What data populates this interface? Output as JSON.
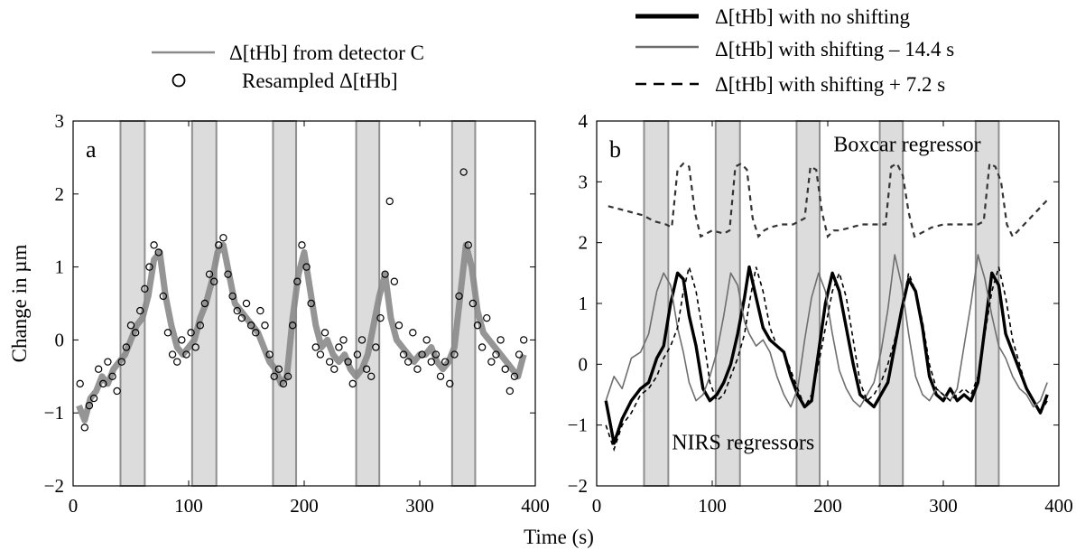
{
  "figure": {
    "xlabel": "Time (s)",
    "shared_ylabel": "Change in µm"
  },
  "legend_a": [
    {
      "label": "Δ[tHb] from detector C",
      "style": "line",
      "color": "#8a8a8a"
    },
    {
      "label": "Resampled Δ[tHb]",
      "style": "circle",
      "color": "#000000"
    }
  ],
  "legend_b": [
    {
      "label": "Δ[tHb] with no shifting",
      "style": "thick",
      "color": "#000000"
    },
    {
      "label": "Δ[tHb] with shifting – 14.4 s",
      "style": "thin",
      "color": "#6e6e6e"
    },
    {
      "label": "Δ[tHb] with shifting + 7.2 s",
      "style": "dashed",
      "color": "#000000"
    }
  ],
  "chart_data": [
    {
      "type": "line",
      "panel_label": "a",
      "ylabel": "Change in µm",
      "xlabel": "",
      "xlim": [
        0,
        400
      ],
      "ylim": [
        -2,
        3
      ],
      "xticks": [
        0,
        100,
        200,
        300,
        400
      ],
      "yticks": [
        -2,
        -1,
        0,
        1,
        2,
        3
      ],
      "shaded_intervals": [
        [
          41,
          62
        ],
        [
          103,
          124
        ],
        [
          173,
          193
        ],
        [
          245,
          265
        ],
        [
          328,
          348
        ]
      ],
      "series": [
        {
          "name": "Δ[tHb] from detector C",
          "x": [
            5,
            10,
            15,
            20,
            25,
            30,
            35,
            40,
            45,
            50,
            55,
            60,
            65,
            70,
            75,
            80,
            85,
            90,
            95,
            100,
            105,
            110,
            115,
            120,
            125,
            130,
            135,
            140,
            145,
            150,
            155,
            160,
            165,
            170,
            175,
            180,
            185,
            190,
            195,
            200,
            205,
            210,
            215,
            220,
            225,
            230,
            235,
            240,
            245,
            250,
            255,
            260,
            265,
            270,
            275,
            280,
            285,
            290,
            295,
            300,
            305,
            310,
            315,
            320,
            325,
            330,
            335,
            340,
            345,
            350,
            355,
            360,
            365,
            370,
            375,
            380,
            385,
            390
          ],
          "y": [
            -0.9,
            -1.1,
            -0.8,
            -0.7,
            -0.5,
            -0.6,
            -0.4,
            -0.3,
            -0.2,
            0.0,
            0.2,
            0.3,
            0.6,
            1.1,
            1.2,
            0.6,
            0.2,
            -0.1,
            -0.2,
            -0.1,
            0.0,
            0.3,
            0.5,
            0.8,
            1.2,
            1.3,
            0.9,
            0.5,
            0.4,
            0.3,
            0.2,
            0.1,
            -0.1,
            -0.3,
            -0.4,
            -0.6,
            -0.5,
            0.3,
            0.9,
            1.2,
            0.7,
            0.2,
            -0.1,
            0.0,
            -0.2,
            -0.3,
            -0.2,
            -0.4,
            -0.5,
            -0.4,
            -0.2,
            0.2,
            0.6,
            0.9,
            0.3,
            0.0,
            -0.1,
            -0.2,
            -0.3,
            -0.2,
            -0.2,
            -0.1,
            -0.3,
            -0.4,
            -0.3,
            -0.1,
            0.6,
            1.3,
            1.0,
            0.4,
            0.1,
            0.0,
            -0.1,
            -0.2,
            -0.3,
            -0.4,
            -0.5,
            -0.2
          ]
        },
        {
          "name": "Resampled Δ[tHb]",
          "x": [
            6,
            10,
            14,
            18,
            22,
            26,
            30,
            34,
            38,
            42,
            46,
            50,
            54,
            58,
            62,
            66,
            70,
            74,
            78,
            82,
            86,
            90,
            94,
            98,
            102,
            106,
            110,
            114,
            118,
            122,
            126,
            130,
            134,
            138,
            142,
            146,
            150,
            154,
            158,
            162,
            166,
            170,
            174,
            178,
            182,
            186,
            190,
            194,
            198,
            202,
            206,
            210,
            214,
            218,
            222,
            226,
            230,
            234,
            238,
            242,
            246,
            250,
            254,
            258,
            262,
            266,
            270,
            274,
            278,
            282,
            286,
            290,
            294,
            298,
            302,
            306,
            310,
            314,
            318,
            322,
            326,
            330,
            334,
            338,
            342,
            346,
            350,
            354,
            358,
            362,
            366,
            370,
            374,
            378,
            382,
            386,
            390
          ],
          "y": [
            -0.6,
            -1.2,
            -0.9,
            -0.8,
            -0.4,
            -0.6,
            -0.3,
            -0.5,
            -0.7,
            -0.3,
            -0.1,
            0.2,
            0.1,
            0.4,
            0.7,
            1.0,
            1.3,
            1.2,
            0.6,
            0.1,
            -0.2,
            -0.3,
            0.0,
            -0.2,
            0.1,
            -0.1,
            0.2,
            0.5,
            0.9,
            0.8,
            1.3,
            1.4,
            0.9,
            0.6,
            0.4,
            0.3,
            0.5,
            0.2,
            0.1,
            0.4,
            0.2,
            -0.2,
            -0.5,
            -0.4,
            -0.6,
            -0.5,
            0.2,
            0.8,
            1.3,
            1.0,
            0.5,
            -0.1,
            -0.2,
            0.1,
            -0.3,
            -0.4,
            -0.1,
            0.0,
            -0.3,
            -0.6,
            -0.2,
            0.0,
            -0.4,
            -0.5,
            -0.1,
            0.3,
            0.9,
            1.9,
            0.8,
            0.2,
            -0.2,
            -0.3,
            0.1,
            -0.4,
            -0.2,
            0.0,
            -0.3,
            -0.2,
            -0.5,
            -0.3,
            -0.6,
            -0.2,
            0.6,
            2.3,
            1.3,
            0.5,
            0.2,
            -0.1,
            0.3,
            -0.3,
            -0.2,
            0.0,
            -0.4,
            -0.7,
            -0.5,
            -0.2,
            0.0
          ]
        }
      ]
    },
    {
      "type": "line",
      "panel_label": "b",
      "ylabel": "",
      "xlabel": "Time (s)",
      "xlim": [
        0,
        400
      ],
      "ylim": [
        -2,
        4
      ],
      "xticks": [
        0,
        100,
        200,
        300,
        400
      ],
      "yticks": [
        -2,
        -1,
        0,
        1,
        2,
        3,
        4
      ],
      "shaded_intervals": [
        [
          41,
          62
        ],
        [
          103,
          124
        ],
        [
          173,
          193
        ],
        [
          245,
          265
        ],
        [
          328,
          348
        ]
      ],
      "annotations": [
        {
          "text": "Boxcar regressor",
          "x": 205,
          "y": 3.5
        },
        {
          "text": "NIRS regressors",
          "x": 65,
          "y": -1.4
        }
      ],
      "series": [
        {
          "name": "Boxcar regressor",
          "x": [
            10,
            20,
            30,
            40,
            50,
            60,
            65,
            70,
            75,
            80,
            85,
            90,
            100,
            110,
            115,
            120,
            125,
            130,
            135,
            140,
            145,
            150,
            160,
            170,
            180,
            185,
            190,
            195,
            200,
            205,
            210,
            220,
            230,
            240,
            250,
            255,
            260,
            265,
            270,
            275,
            280,
            290,
            300,
            310,
            320,
            330,
            335,
            340,
            345,
            350,
            355,
            360,
            370,
            380,
            390
          ],
          "y": [
            2.6,
            2.55,
            2.5,
            2.45,
            2.35,
            2.3,
            2.25,
            3.2,
            3.3,
            3.25,
            2.5,
            2.1,
            2.2,
            2.15,
            2.2,
            3.25,
            3.3,
            3.2,
            2.4,
            2.1,
            2.2,
            2.25,
            2.3,
            2.3,
            2.4,
            3.25,
            3.2,
            2.5,
            2.1,
            2.2,
            2.2,
            2.25,
            2.3,
            2.3,
            2.3,
            3.25,
            3.3,
            3.1,
            2.5,
            2.1,
            2.15,
            2.25,
            2.3,
            2.3,
            2.3,
            2.3,
            2.35,
            3.3,
            3.25,
            3.0,
            2.3,
            2.1,
            2.3,
            2.5,
            2.7
          ]
        },
        {
          "name": "Δ[tHb] with no shifting",
          "x": [
            8,
            15,
            22,
            30,
            38,
            45,
            52,
            58,
            64,
            70,
            75,
            80,
            86,
            92,
            98,
            104,
            110,
            116,
            122,
            128,
            132,
            138,
            144,
            150,
            156,
            162,
            168,
            174,
            180,
            186,
            192,
            198,
            204,
            210,
            216,
            222,
            228,
            234,
            240,
            246,
            252,
            258,
            264,
            270,
            276,
            282,
            288,
            294,
            300,
            306,
            312,
            318,
            324,
            330,
            336,
            342,
            348,
            354,
            360,
            366,
            372,
            378,
            384,
            390
          ],
          "y": [
            -0.6,
            -1.3,
            -0.9,
            -0.6,
            -0.4,
            -0.3,
            0.1,
            0.3,
            1.0,
            1.5,
            1.4,
            0.8,
            0.3,
            -0.4,
            -0.6,
            -0.5,
            -0.3,
            0.0,
            0.5,
            1.1,
            1.6,
            1.1,
            0.6,
            0.4,
            0.3,
            0.2,
            -0.2,
            -0.5,
            -0.7,
            -0.6,
            0.2,
            1.0,
            1.5,
            1.2,
            0.6,
            0.0,
            -0.5,
            -0.6,
            -0.7,
            -0.5,
            -0.3,
            0.3,
            0.9,
            1.4,
            1.2,
            0.6,
            -0.2,
            -0.5,
            -0.6,
            -0.4,
            -0.6,
            -0.5,
            -0.6,
            -0.3,
            0.6,
            1.5,
            1.3,
            0.5,
            0.2,
            -0.1,
            -0.4,
            -0.6,
            -0.8,
            -0.5
          ]
        },
        {
          "name": "Δ[tHb] with shifting – 14.4 s",
          "x": [
            8,
            15,
            22,
            30,
            38,
            45,
            52,
            58,
            64,
            70,
            75,
            80,
            86,
            92,
            98,
            104,
            110,
            116,
            122,
            128,
            132,
            138,
            144,
            150,
            156,
            162,
            168,
            174,
            180,
            186,
            192,
            198,
            204,
            210,
            216,
            222,
            228,
            234,
            240,
            246,
            252,
            258,
            264,
            270,
            276,
            282,
            288,
            294,
            300,
            306,
            312,
            318,
            324,
            330,
            336,
            342,
            348,
            354,
            360,
            366,
            372,
            378,
            384,
            390
          ],
          "y": [
            -0.6,
            -0.2,
            -0.4,
            0.1,
            0.2,
            0.5,
            1.2,
            1.5,
            1.3,
            0.6,
            0.2,
            -0.3,
            -0.6,
            -0.5,
            -0.2,
            0.2,
            0.8,
            1.5,
            1.3,
            0.7,
            0.5,
            0.3,
            0.4,
            0.2,
            -0.2,
            -0.5,
            -0.7,
            -0.4,
            0.4,
            1.1,
            1.5,
            1.2,
            0.5,
            -0.1,
            -0.4,
            -0.6,
            -0.7,
            -0.5,
            -0.3,
            0.2,
            0.9,
            1.8,
            1.3,
            0.5,
            -0.2,
            -0.5,
            -0.6,
            -0.4,
            -0.5,
            -0.6,
            -0.4,
            0.3,
            1.0,
            1.8,
            1.4,
            0.8,
            0.3,
            0.1,
            -0.2,
            -0.4,
            -0.5,
            -0.7,
            -0.6,
            -0.3
          ]
        },
        {
          "name": "Δ[tHb] with shifting + 7.2 s",
          "x": [
            8,
            15,
            22,
            30,
            38,
            45,
            52,
            58,
            64,
            70,
            75,
            80,
            86,
            92,
            98,
            104,
            110,
            116,
            122,
            128,
            132,
            138,
            144,
            150,
            156,
            162,
            168,
            174,
            180,
            186,
            192,
            198,
            204,
            210,
            216,
            222,
            228,
            234,
            240,
            246,
            252,
            258,
            264,
            270,
            276,
            282,
            288,
            294,
            300,
            306,
            312,
            318,
            324,
            330,
            336,
            342,
            348,
            354,
            360,
            366,
            372,
            378,
            384,
            390
          ],
          "y": [
            -1.0,
            -1.4,
            -1.0,
            -0.8,
            -0.5,
            -0.4,
            -0.2,
            0.1,
            0.3,
            0.6,
            1.2,
            1.6,
            1.2,
            0.5,
            -0.3,
            -0.6,
            -0.5,
            -0.2,
            0.1,
            0.5,
            1.0,
            1.6,
            1.2,
            0.6,
            0.3,
            0.2,
            -0.1,
            -0.4,
            -0.7,
            -0.5,
            0.0,
            0.6,
            1.2,
            1.5,
            1.1,
            0.4,
            -0.3,
            -0.6,
            -0.5,
            -0.3,
            0.0,
            0.4,
            0.9,
            1.5,
            1.2,
            0.7,
            0.0,
            -0.4,
            -0.5,
            -0.6,
            -0.5,
            -0.4,
            -0.5,
            -0.2,
            0.5,
            1.2,
            1.6,
            1.1,
            0.4,
            0.0,
            -0.4,
            -0.6,
            -0.8,
            -0.6
          ]
        }
      ]
    }
  ]
}
